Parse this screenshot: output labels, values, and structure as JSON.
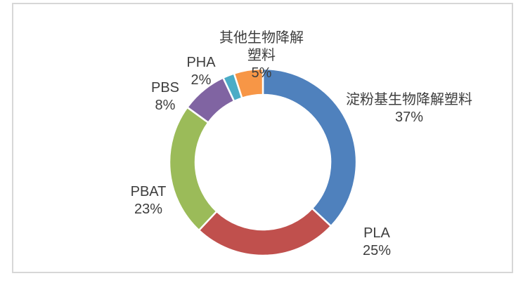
{
  "frame": {
    "border_color": "#d7d7d7",
    "background": "#ffffff"
  },
  "chart_data": {
    "type": "pie",
    "subtype": "donut",
    "title": "",
    "unit": "%",
    "start_angle_deg": 0,
    "direction": "clockwise",
    "inner_radius_ratio": 0.72,
    "separator_color": "#ffffff",
    "label_color": "#3d3d3d",
    "segments": [
      {
        "label": "淀粉基生物降解塑料",
        "value": 37,
        "pct_label": "37%",
        "color": "#4F81BD"
      },
      {
        "label": "PLA",
        "value": 25,
        "pct_label": "25%",
        "color": "#C0504D"
      },
      {
        "label": "PBAT",
        "value": 23,
        "pct_label": "23%",
        "color": "#9BBB59"
      },
      {
        "label": "PBS",
        "value": 8,
        "pct_label": "8%",
        "color": "#8064A2"
      },
      {
        "label": "PHA",
        "value": 2,
        "pct_label": "2%",
        "color": "#4BACC6"
      },
      {
        "label": "其他生物降解塑料",
        "value": 5,
        "pct_label": "5%",
        "color": "#F79646"
      }
    ]
  },
  "callouts": [
    {
      "lines": [
        "淀粉基生物降解塑料",
        "37%"
      ]
    },
    {
      "lines": [
        "PLA",
        "25%"
      ]
    },
    {
      "lines": [
        "PBAT",
        "23%"
      ]
    },
    {
      "lines": [
        "PBS",
        "8%"
      ]
    },
    {
      "lines": [
        "PHA",
        "2%"
      ]
    },
    {
      "lines": [
        "其他生物降解",
        "塑料",
        "5%"
      ]
    }
  ]
}
